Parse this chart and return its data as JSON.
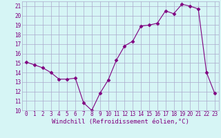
{
  "x": [
    0,
    1,
    2,
    3,
    4,
    5,
    6,
    7,
    8,
    9,
    10,
    11,
    12,
    13,
    14,
    15,
    16,
    17,
    18,
    19,
    20,
    21,
    22,
    23
  ],
  "y": [
    15.1,
    14.8,
    14.5,
    14.0,
    13.3,
    13.3,
    13.4,
    10.8,
    10.0,
    11.8,
    13.2,
    15.3,
    16.8,
    17.3,
    18.9,
    19.0,
    19.2,
    20.5,
    20.2,
    21.2,
    21.0,
    20.7,
    14.0,
    11.8
  ],
  "xlim": [
    -0.5,
    23.5
  ],
  "ylim": [
    10,
    21.5
  ],
  "yticks": [
    10,
    11,
    12,
    13,
    14,
    15,
    16,
    17,
    18,
    19,
    20,
    21
  ],
  "xticks": [
    0,
    1,
    2,
    3,
    4,
    5,
    6,
    7,
    8,
    9,
    10,
    11,
    12,
    13,
    14,
    15,
    16,
    17,
    18,
    19,
    20,
    21,
    22,
    23
  ],
  "xlabel": "Windchill (Refroidissement éolien,°C)",
  "line_color": "#800080",
  "marker": "D",
  "marker_size": 2.5,
  "bg_color": "#d6f5f5",
  "grid_color": "#aaaacc",
  "tick_fontsize": 5.5,
  "xlabel_fontsize": 6.5
}
